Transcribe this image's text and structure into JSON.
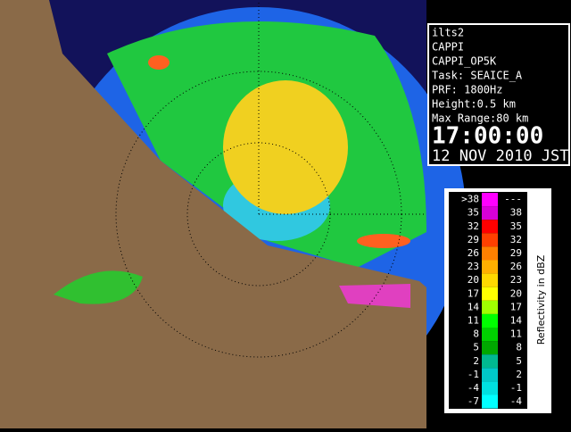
{
  "info": {
    "lines": [
      "ilts2",
      "CAPPI",
      "CAPPI_OP5K",
      "Task: SEAICE_A",
      "PRF: 1800Hz",
      "Height:0.5 km",
      "Max Range:80 km"
    ],
    "time": "17:00:00",
    "date": "12 NOV 2010 JST"
  },
  "legend": {
    "title": "Reflectivity in dBZ",
    "rows": [
      {
        "low": ">38",
        "high": "---",
        "color": "#ff00ff"
      },
      {
        "low": "35",
        "high": "38",
        "color": "#d800d8"
      },
      {
        "low": "32",
        "high": "35",
        "color": "#ff0000"
      },
      {
        "low": "29",
        "high": "32",
        "color": "#ff4000"
      },
      {
        "low": "26",
        "high": "29",
        "color": "#ff8000"
      },
      {
        "low": "23",
        "high": "26",
        "color": "#ffb000"
      },
      {
        "low": "20",
        "high": "23",
        "color": "#ffd800"
      },
      {
        "low": "17",
        "high": "20",
        "color": "#ffff00"
      },
      {
        "low": "14",
        "high": "17",
        "color": "#a0ff00"
      },
      {
        "low": "11",
        "high": "14",
        "color": "#00ff00"
      },
      {
        "low": "8",
        "high": "11",
        "color": "#00d000"
      },
      {
        "low": "5",
        "high": "8",
        "color": "#00a800"
      },
      {
        "low": "2",
        "high": "5",
        "color": "#00b890"
      },
      {
        "low": "-1",
        "high": "2",
        "color": "#00c8c8"
      },
      {
        "low": "-4",
        "high": "-1",
        "color": "#00e0e0"
      },
      {
        "low": "-7",
        "high": "-4",
        "color": "#00ffff"
      }
    ]
  }
}
